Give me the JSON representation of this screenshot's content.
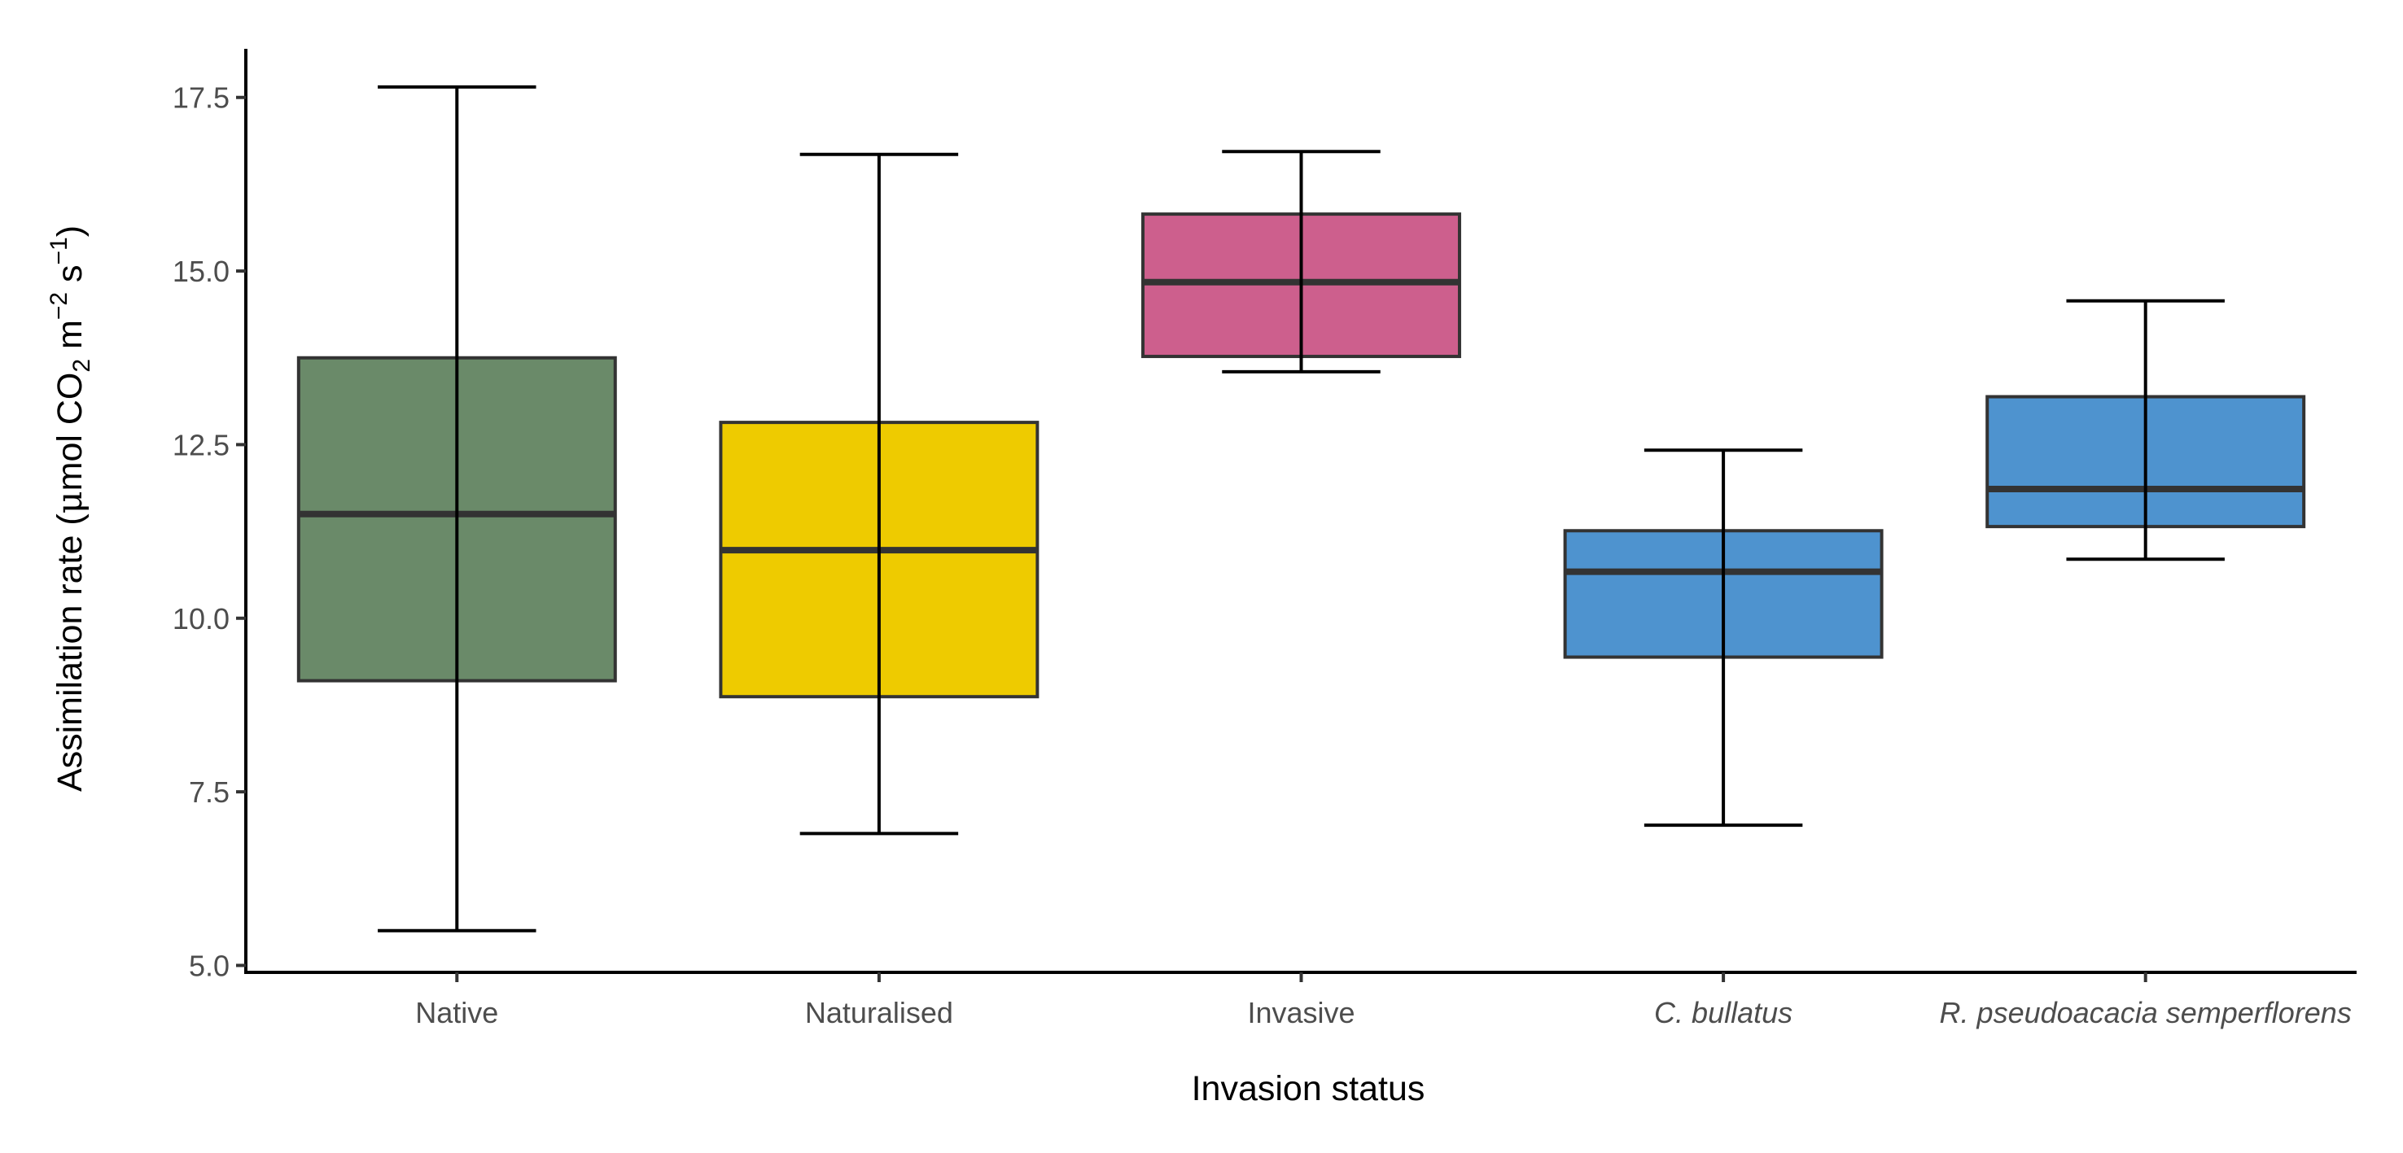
{
  "chart_data": {
    "type": "boxplot",
    "xlabel": "Invasion status",
    "ylabel": {
      "prefix": "Assimilation rate (",
      "mu": "μ",
      "mol": "mol CO",
      "sub2": "2",
      "m": " m",
      "sup_m": "−2",
      "s": " s",
      "sup_s": "−1",
      "suffix": ")"
    },
    "ylim": [
      4.9,
      18.2
    ],
    "yticks": [
      5.0,
      7.5,
      10.0,
      12.5,
      15.0,
      17.5
    ],
    "ytick_labels": [
      "5.0",
      "7.5",
      "10.0",
      "12.5",
      "15.0",
      "17.5"
    ],
    "grid": false,
    "legend": "none",
    "categories": [
      {
        "label": "Native",
        "italic": false,
        "color": "#6a8a69",
        "whisker_low": 5.5,
        "q1": 9.1,
        "median": 11.5,
        "q3": 13.75,
        "whisker_high": 17.65
      },
      {
        "label": "Naturalised",
        "italic": false,
        "color": "#eecb00",
        "whisker_low": 6.9,
        "q1": 8.87,
        "median": 10.98,
        "q3": 12.82,
        "whisker_high": 16.68
      },
      {
        "label": "Invasive",
        "italic": false,
        "color": "#cd5f8d",
        "whisker_low": 13.55,
        "q1": 13.77,
        "median": 14.84,
        "q3": 15.82,
        "whisker_high": 16.72
      },
      {
        "label": "C. bullatus",
        "italic": true,
        "color": "#4e93cf",
        "whisker_low": 7.02,
        "q1": 9.44,
        "median": 10.67,
        "q3": 11.26,
        "whisker_high": 12.42
      },
      {
        "label": "R. pseudoacacia semperflorens",
        "italic": true,
        "color": "#4e93cf",
        "whisker_low": 10.85,
        "q1": 11.32,
        "median": 11.86,
        "q3": 13.19,
        "whisker_high": 14.57
      }
    ]
  }
}
